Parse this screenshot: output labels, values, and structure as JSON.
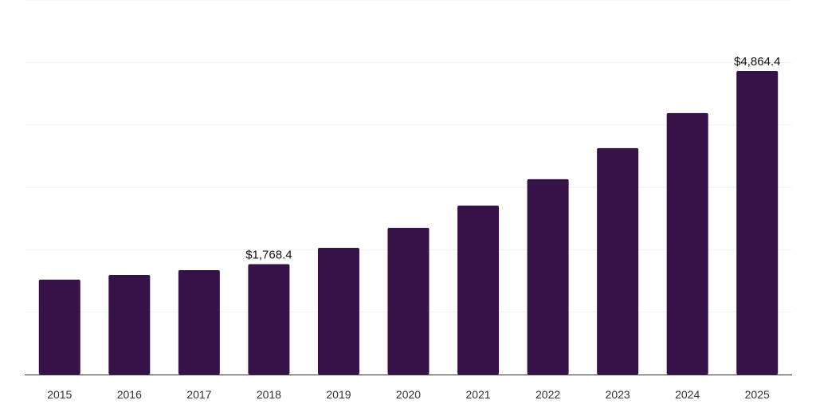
{
  "chart_data": {
    "type": "bar",
    "title": "",
    "xlabel": "",
    "ylabel": "",
    "categories": [
      "2015",
      "2016",
      "2017",
      "2018",
      "2019",
      "2020",
      "2021",
      "2022",
      "2023",
      "2024",
      "2025"
    ],
    "values": [
      1520,
      1596,
      1673,
      1768.4,
      2030,
      2350,
      2707,
      3129,
      3627,
      4189,
      4864.4
    ],
    "data_labels": {
      "3": "$1,768.4",
      "10": "$4,864.4"
    },
    "ylim": [
      0,
      6000
    ],
    "ytick_step": 1000,
    "grid": true,
    "legend": "none",
    "bar_color": "#361249",
    "grid_color": "#f2f2f2",
    "axis_color": "#333333"
  }
}
